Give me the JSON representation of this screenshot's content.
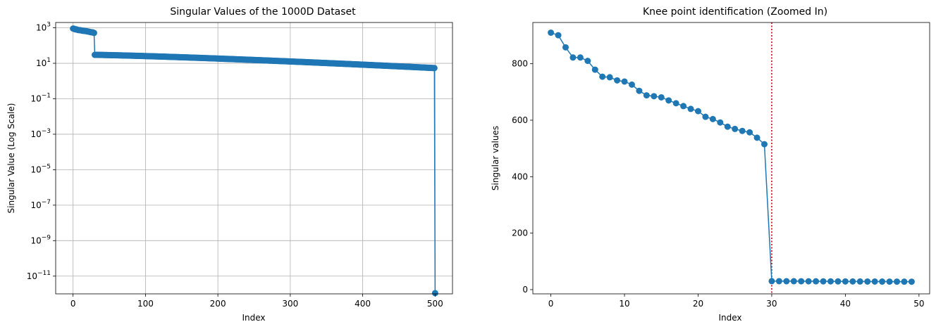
{
  "colors": {
    "series": "#1f77b4",
    "knee_line": "#cc0000",
    "grid": "#b0b0b0"
  },
  "chart_data": [
    {
      "type": "line",
      "title": "Singular Values of the 1000D Dataset",
      "xlabel": "Index",
      "ylabel": "Singular Value (Log Scale)",
      "yscale": "log",
      "grid": true,
      "xlim": [
        -24,
        524
      ],
      "ylim": [
        1e-12,
        2000
      ],
      "xticks": [
        0,
        100,
        200,
        300,
        400,
        500
      ],
      "xtick_labels": [
        "0",
        "100",
        "200",
        "300",
        "400",
        "500"
      ],
      "yticks": [
        1e-11,
        1e-09,
        1e-07,
        1e-05,
        0.001,
        0.1,
        10,
        1000
      ],
      "ytick_labels": [
        {
          "base": "10",
          "exp": "−11"
        },
        {
          "base": "10",
          "exp": "−9"
        },
        {
          "base": "10",
          "exp": "−7"
        },
        {
          "base": "10",
          "exp": "−5"
        },
        {
          "base": "10",
          "exp": "−3"
        },
        {
          "base": "10",
          "exp": "−1"
        },
        {
          "base": "10",
          "exp": "1"
        },
        {
          "base": "10",
          "exp": "3"
        }
      ],
      "series": [
        {
          "description": "500 singular values: top 30 large (~900 to ~515), then ~30 decaying to ~5.4, final value ~1e-12",
          "head": [
            910,
            901,
            858,
            822,
            822,
            810,
            779,
            754,
            752,
            741,
            737,
            726,
            704,
            688,
            685,
            681,
            670,
            660,
            650,
            640,
            632,
            612,
            604,
            592,
            577,
            569,
            562,
            557,
            538,
            515
          ],
          "tail_start_value": 30,
          "tail_end_index": 499,
          "tail_end_value": 5.4,
          "last_index": 500,
          "last_value": 1.1e-12
        }
      ]
    },
    {
      "type": "line",
      "title": "Knee point identification (Zoomed In)",
      "xlabel": "Index",
      "ylabel": "Singular values",
      "grid": false,
      "xlim": [
        -2.45,
        51.45
      ],
      "ylim": [
        -15,
        946
      ],
      "xticks": [
        0,
        10,
        20,
        30,
        40,
        50
      ],
      "xtick_labels": [
        "0",
        "10",
        "20",
        "30",
        "40",
        "50"
      ],
      "yticks": [
        0,
        200,
        400,
        600,
        800
      ],
      "ytick_labels": [
        "0",
        "200",
        "400",
        "600",
        "800"
      ],
      "vline": {
        "x": 30,
        "style": "dotted"
      },
      "series": [
        {
          "x": [
            0,
            1,
            2,
            3,
            4,
            5,
            6,
            7,
            8,
            9,
            10,
            11,
            12,
            13,
            14,
            15,
            16,
            17,
            18,
            19,
            20,
            21,
            22,
            23,
            24,
            25,
            26,
            27,
            28,
            29,
            30,
            31,
            32,
            33,
            34,
            35,
            36,
            37,
            38,
            39,
            40,
            41,
            42,
            43,
            44,
            45,
            46,
            47,
            48,
            49
          ],
          "values": [
            910,
            901,
            858,
            822,
            822,
            810,
            779,
            754,
            752,
            741,
            737,
            726,
            704,
            688,
            685,
            681,
            670,
            660,
            650,
            640,
            632,
            612,
            604,
            592,
            577,
            569,
            562,
            557,
            538,
            515,
            30,
            29.9,
            29.8,
            29.7,
            29.6,
            29.5,
            29.4,
            29.3,
            29.2,
            29.1,
            29.0,
            28.9,
            28.8,
            28.7,
            28.6,
            28.5,
            28.4,
            28.3,
            28.2,
            28.1
          ]
        }
      ]
    }
  ]
}
